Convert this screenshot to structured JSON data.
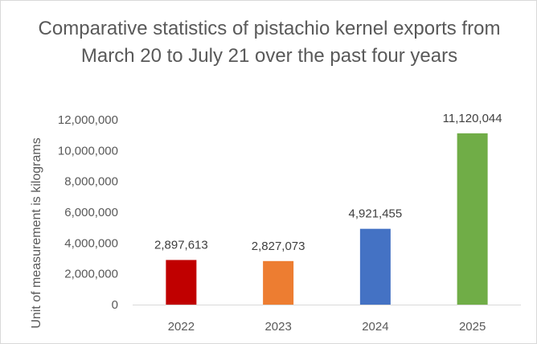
{
  "chart_data": {
    "type": "bar",
    "title": "Comparative statistics of pistachio kernel exports from March 20 to July 21 over the past four years",
    "ylabel": "Unit of measurement is kilograms",
    "xlabel": "",
    "categories": [
      "2022",
      "2023",
      "2024",
      "2025"
    ],
    "values": [
      2897613,
      2827073,
      4921455,
      11120044
    ],
    "data_labels": [
      "2,897,613",
      "2,827,073",
      "4,921,455",
      "11,120,044"
    ],
    "colors": [
      "#c00000",
      "#ed7d31",
      "#4472c4",
      "#70ad47"
    ],
    "ylim": [
      0,
      12000000
    ],
    "y_ticks": [
      0,
      2000000,
      4000000,
      6000000,
      8000000,
      10000000,
      12000000
    ],
    "y_tick_labels": [
      "0",
      "2,000,000",
      "4,000,000",
      "6,000,000",
      "8,000,000",
      "10,000,000",
      "12,000,000"
    ],
    "grid": false,
    "legend": "none"
  }
}
